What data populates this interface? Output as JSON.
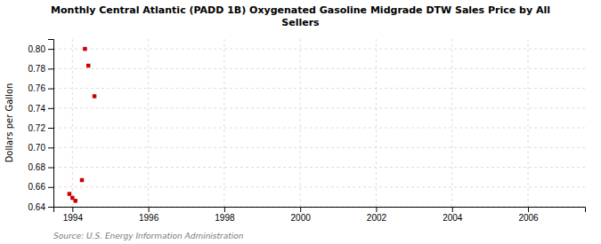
{
  "chart_data": {
    "type": "scatter",
    "title": "Monthly Central Atlantic (PADD 1B) Oxygenated Gasoline Midgrade DTW Sales Price by All\nSellers",
    "y_label": "Dollars per Gallon",
    "annotations": [
      "Source: U.S. Energy Information Administration"
    ],
    "x": [
      1993.92,
      1994.0,
      1994.08,
      1994.25,
      1994.33,
      1994.42,
      1994.58
    ],
    "values": [
      0.653,
      0.649,
      0.646,
      0.667,
      0.8,
      0.783,
      0.752
    ],
    "color": "#cc0000",
    "marker": "square",
    "xlim": [
      1993.5,
      2007.5
    ],
    "ylim": [
      0.64,
      0.81
    ],
    "xticks": [
      1994,
      1996,
      1998,
      2000,
      2002,
      2004,
      2006
    ],
    "yticks": [
      0.64,
      0.66,
      0.68,
      {
        "value": 0.7,
        "label": "0.70"
      },
      0.72,
      0.74,
      0.76,
      0.78,
      {
        "value": 0.8,
        "label": "0.80"
      }
    ],
    "grid": true
  }
}
